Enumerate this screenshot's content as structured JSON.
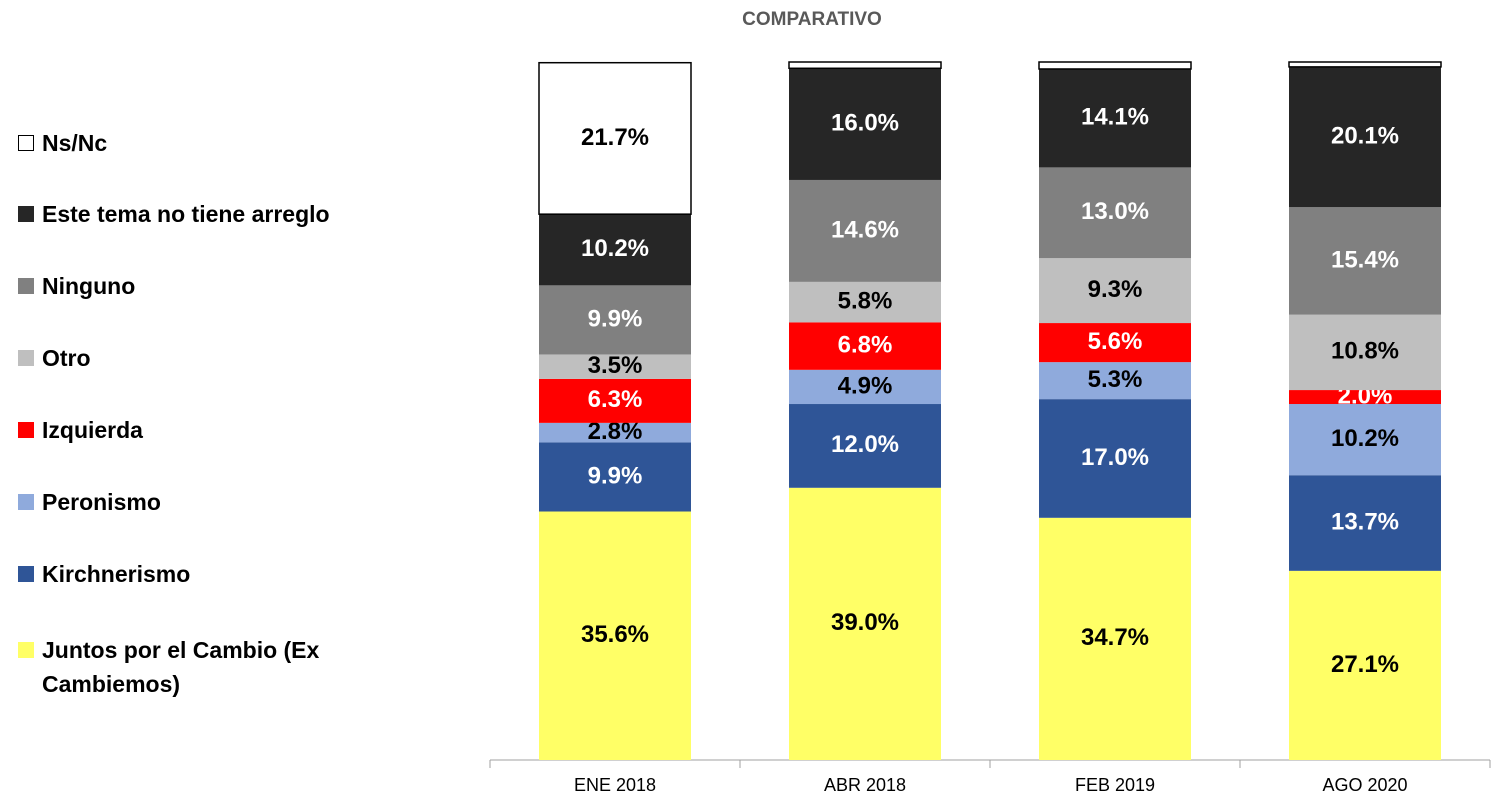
{
  "chart_data": {
    "type": "stacked_bar",
    "title": "COMPARATIVO",
    "categories": [
      "ENE 2018",
      "ABR 2018",
      "FEB 2019",
      "AGO 2020"
    ],
    "ylim": [
      0,
      100
    ],
    "series": [
      {
        "name": "Juntos por el Cambio (Ex Cambiemos)",
        "color": "#ffff66",
        "values": [
          35.6,
          39.0,
          34.7,
          27.1
        ],
        "value_labels": [
          "35.6%",
          "39.0%",
          "34.7%",
          "27.1%"
        ]
      },
      {
        "name": "Kirchnerismo",
        "color": "#2f5597",
        "values": [
          9.9,
          12.0,
          17.0,
          13.7
        ],
        "value_labels": [
          "9.9%",
          "12.0%",
          "17.0%",
          "13.7%"
        ]
      },
      {
        "name": "Peronismo",
        "color": "#8faadc",
        "values": [
          2.8,
          4.9,
          5.3,
          10.2
        ],
        "value_labels": [
          "2.8%",
          "4.9%",
          "5.3%",
          "10.2%"
        ]
      },
      {
        "name": "Izquierda",
        "color": "#ff0000",
        "values": [
          6.3,
          6.8,
          5.6,
          2.0
        ],
        "value_labels": [
          "6.3%",
          "6.8%",
          "5.6%",
          "2.0%"
        ]
      },
      {
        "name": "Otro",
        "color": "#bfbfbf",
        "values": [
          3.5,
          5.8,
          9.3,
          10.8
        ],
        "value_labels": [
          "3.5%",
          "5.8%",
          "9.3%",
          "10.8%"
        ]
      },
      {
        "name": "Ninguno",
        "color": "#808080",
        "values": [
          9.9,
          14.6,
          13.0,
          15.4
        ],
        "value_labels": [
          "9.9%",
          "14.6%",
          "13.0%",
          "15.4%"
        ]
      },
      {
        "name": "Este tema no tiene arreglo",
        "color": "#262626",
        "values": [
          10.2,
          16.0,
          14.1,
          20.1
        ],
        "value_labels": [
          "10.2%",
          "16.0%",
          "14.1%",
          "20.1%"
        ]
      },
      {
        "name": "Ns/Nc",
        "color": "#ffffff",
        "values": [
          21.7,
          0.9,
          1.0,
          0.7
        ],
        "value_labels": [
          "21.7%",
          null,
          null,
          null
        ]
      }
    ]
  }
}
